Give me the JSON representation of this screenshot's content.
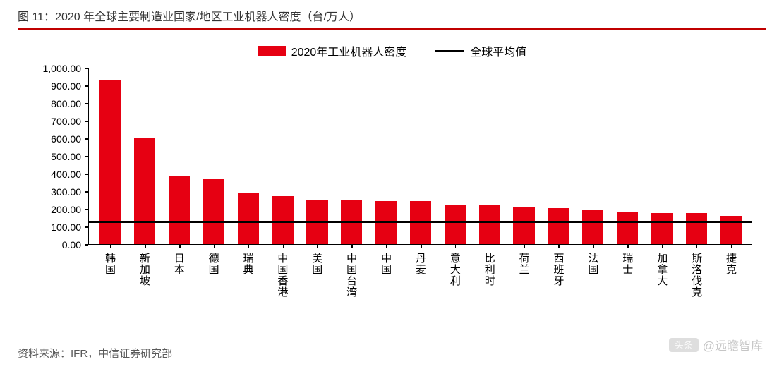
{
  "title": "图 11：2020 年全球主要制造业国家/地区工业机器人密度（台/万人）",
  "legend": {
    "series_label": "2020年工业机器人密度",
    "avg_label": "全球平均值"
  },
  "chart": {
    "type": "bar",
    "ylim": [
      0,
      1000
    ],
    "ytick_step": 100,
    "y_tick_labels": [
      "0.00",
      "100.00",
      "200.00",
      "300.00",
      "400.00",
      "500.00",
      "600.00",
      "700.00",
      "800.00",
      "900.00",
      "1,000.00"
    ],
    "categories": [
      "韩国",
      "新加坡",
      "日本",
      "德国",
      "瑞典",
      "中国香港",
      "美国",
      "中国台湾",
      "中国",
      "丹麦",
      "意大利",
      "比利时",
      "荷兰",
      "西班牙",
      "法国",
      "瑞士",
      "加拿大",
      "斯洛伐克",
      "捷克"
    ],
    "values": [
      932,
      605,
      390,
      371,
      289,
      275,
      255,
      248,
      246,
      246,
      224,
      221,
      209,
      203,
      194,
      181,
      176,
      175,
      162
    ],
    "global_average": 126,
    "bar_color": "#e60012",
    "avg_line_color": "#000000",
    "axis_color": "#000000",
    "background_color": "#ffffff",
    "title_fontsize": 16,
    "label_fontsize": 15,
    "tick_fontsize": 14,
    "bar_width_ratio": 0.62,
    "avg_line_width": 3
  },
  "source": "资料来源：IFR，中信证券研究部",
  "watermark": {
    "badge": "头条",
    "text": "@远瞻智库"
  },
  "colors": {
    "title_rule": "#c00000",
    "text_primary": "#000000",
    "text_muted": "#595959"
  }
}
